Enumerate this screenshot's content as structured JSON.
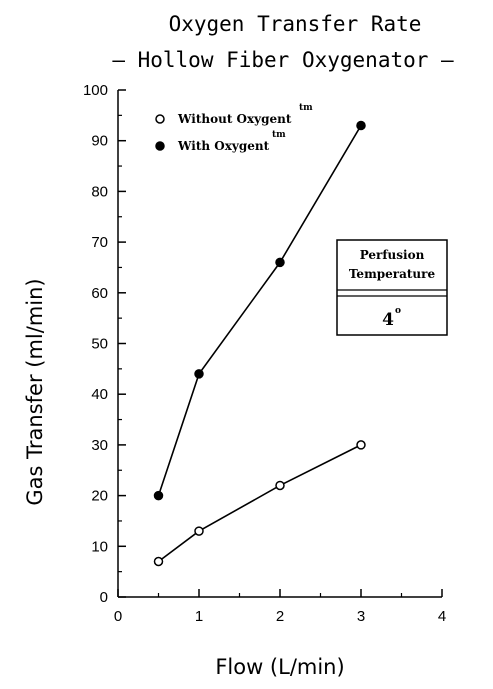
{
  "chart_data": {
    "type": "line",
    "title": "Oxygen Transfer Rate",
    "subtitle": "– Hollow Fiber Oxygenator –",
    "xlabel": "Flow (L/min)",
    "ylabel": "Gas Transfer (ml/min)",
    "xlim": [
      0,
      4
    ],
    "ylim": [
      0,
      100
    ],
    "x_ticks": [
      0,
      1,
      2,
      3,
      4
    ],
    "y_ticks": [
      0,
      10,
      20,
      30,
      40,
      50,
      60,
      70,
      80,
      90,
      100
    ],
    "grid": false,
    "legend_position": "top-left",
    "series": [
      {
        "name": "Without Oxygent",
        "name_sup": "tm",
        "marker": "open-circle",
        "x": [
          0.5,
          1,
          2,
          3
        ],
        "y": [
          7,
          13,
          22,
          30
        ]
      },
      {
        "name": "With Oxygent",
        "name_sup": "tm",
        "marker": "filled-circle",
        "x": [
          0.5,
          1,
          2,
          3
        ],
        "y": [
          20,
          44,
          66,
          93
        ]
      }
    ],
    "annotation": {
      "line1": "Perfusion",
      "line2": "Temperature",
      "value": "4",
      "value_sup": "o"
    }
  }
}
